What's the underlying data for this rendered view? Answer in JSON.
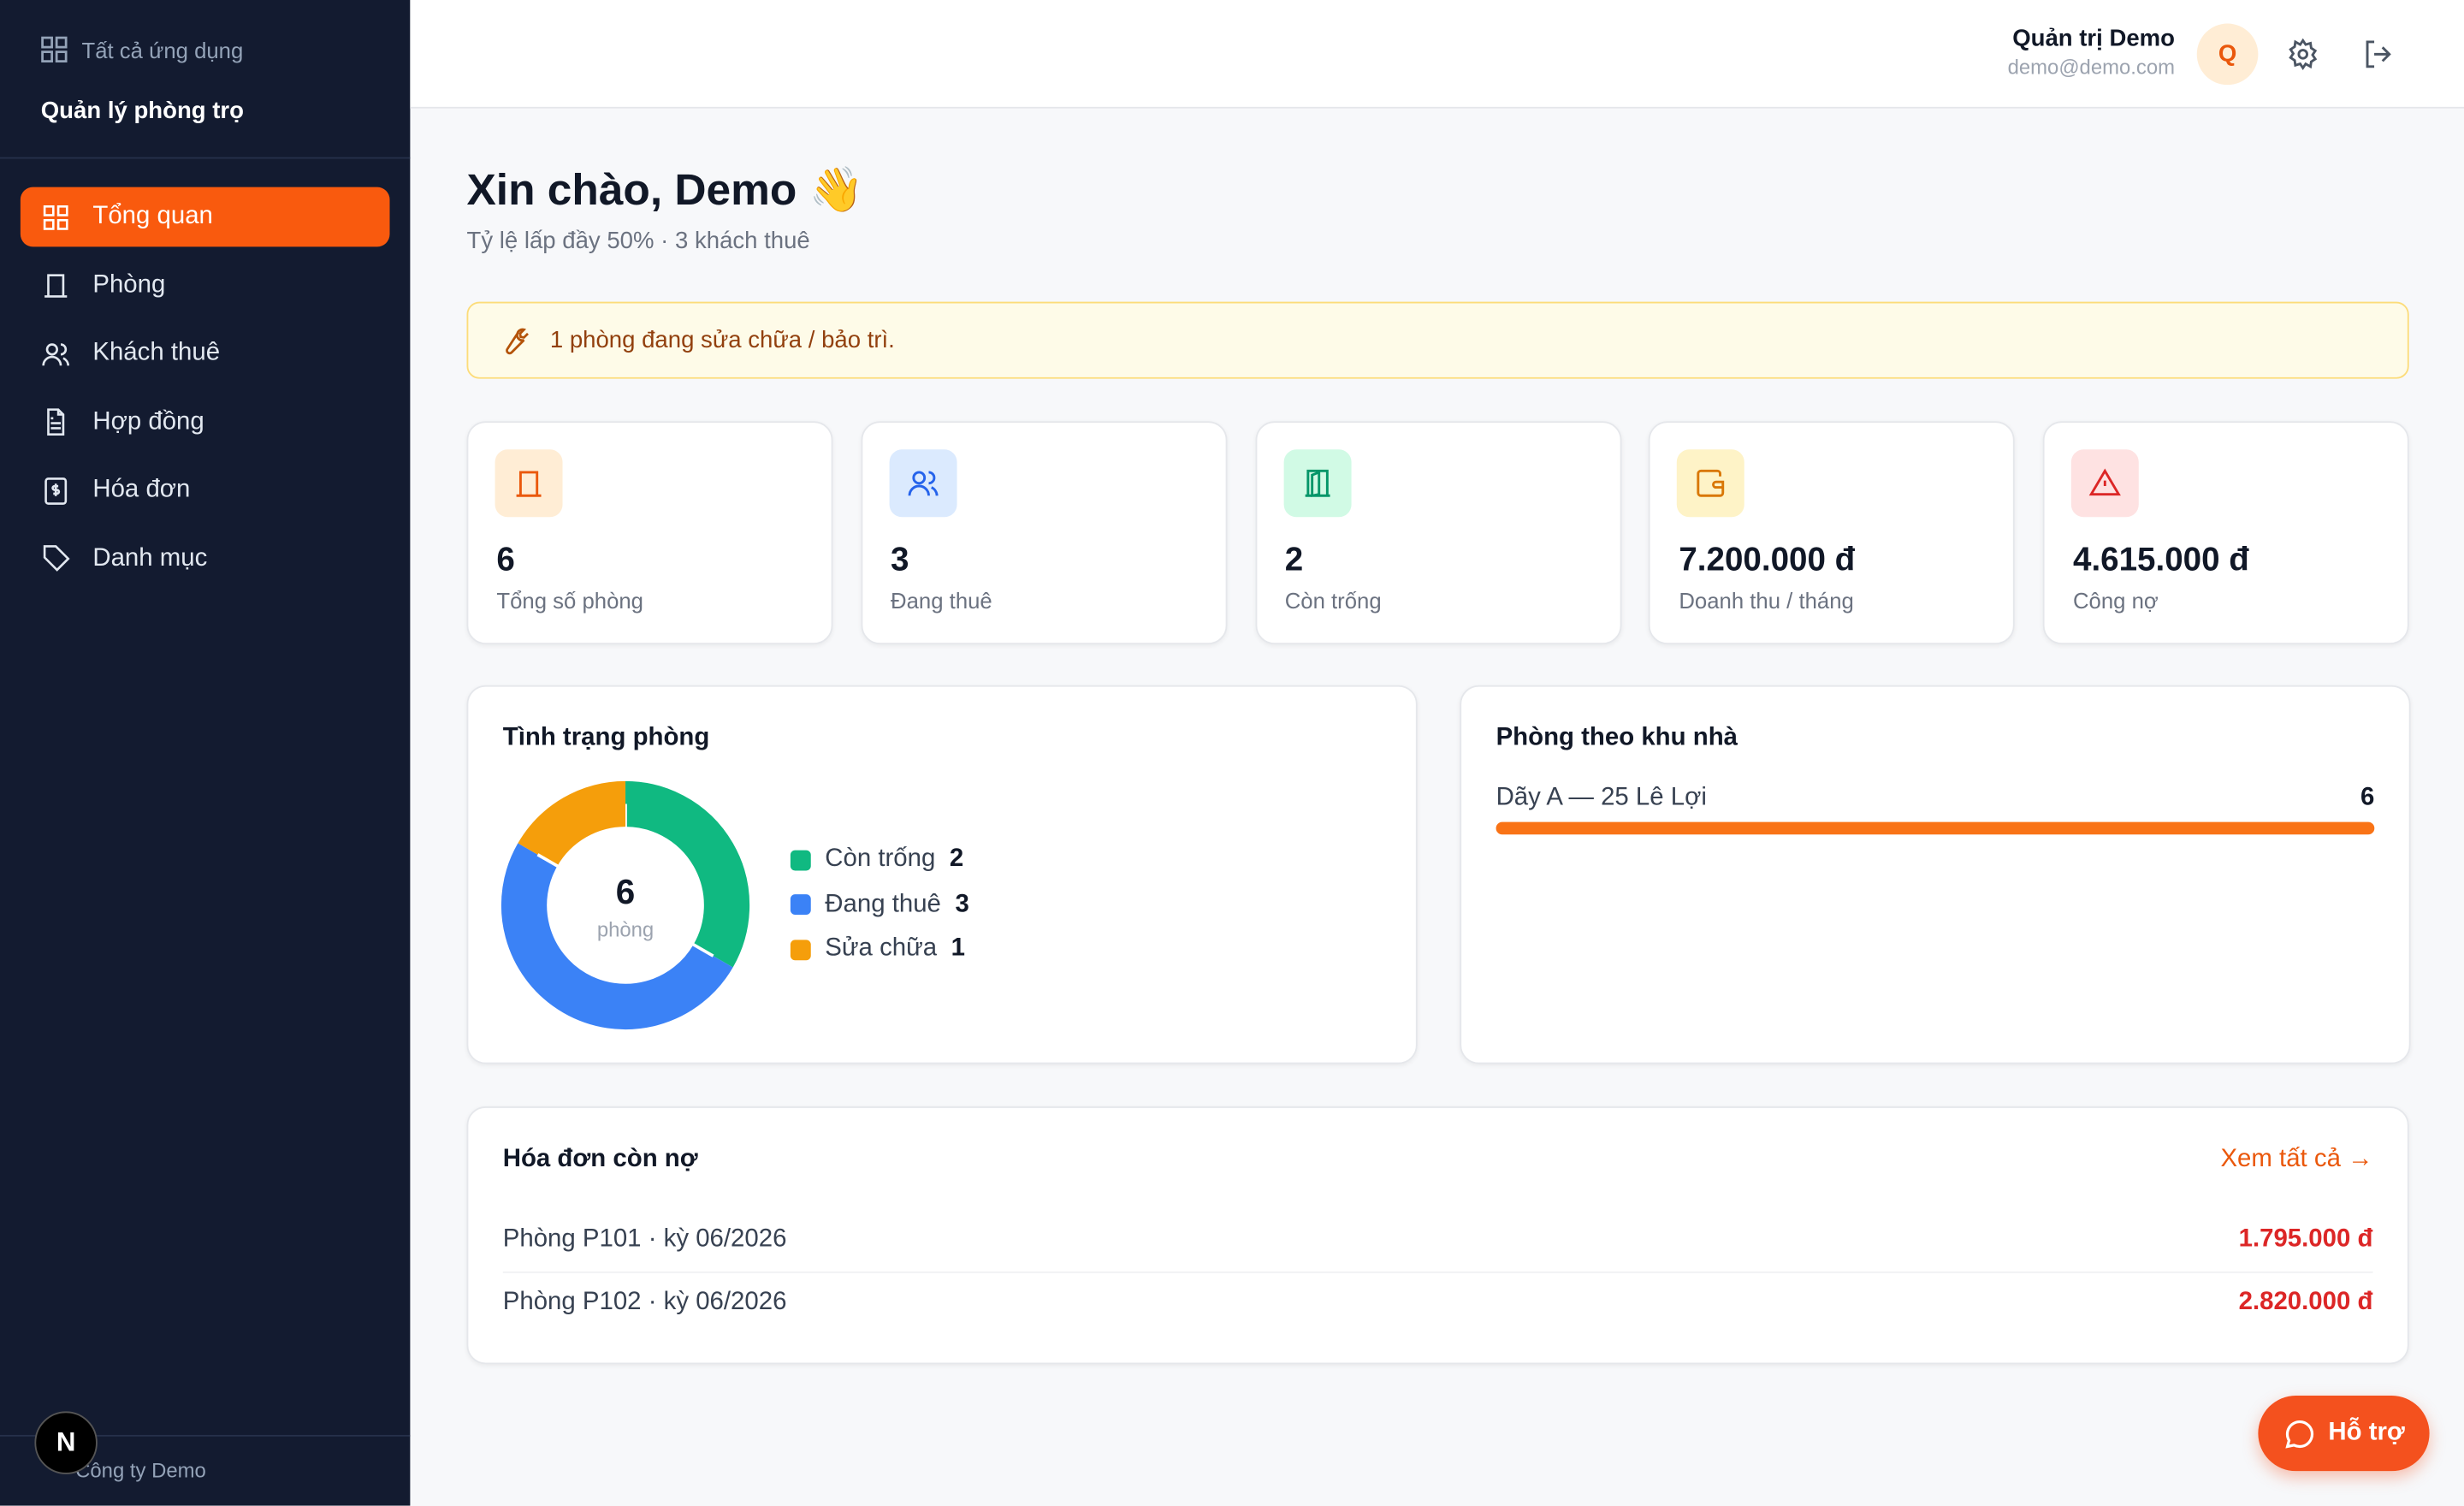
{
  "sidebar": {
    "all_apps": "Tất cả ứng dụng",
    "app_name": "Quản lý phòng trọ",
    "nav": [
      "Tổng quan",
      "Phòng",
      "Khách thuê",
      "Hợp đồng",
      "Hóa đơn",
      "Danh mục"
    ],
    "company": "Công ty Demo",
    "avatar": "N"
  },
  "header": {
    "user_name": "Quản trị Demo",
    "user_email": "demo@demo.com",
    "avatar": "Q"
  },
  "greeting": {
    "title": "Xin chào, Demo 👋",
    "subtitle": "Tỷ lệ lấp đầy 50% · 3 khách thuê"
  },
  "alert": "1 phòng đang sửa chữa / bảo trì.",
  "stats": [
    {
      "value": "6",
      "label": "Tổng số phòng"
    },
    {
      "value": "3",
      "label": "Đang thuê"
    },
    {
      "value": "2",
      "label": "Còn trống"
    },
    {
      "value": "7.200.000 đ",
      "label": "Doanh thu / tháng"
    },
    {
      "value": "4.615.000 đ",
      "label": "Công nợ"
    }
  ],
  "room_status": {
    "type": "pie",
    "title": "Tình trạng phòng",
    "center_value": 6,
    "center_label": "phòng",
    "categories": [
      "Còn trống",
      "Đang thuê",
      "Sửa chữa"
    ],
    "values": [
      2,
      3,
      1
    ],
    "colors": [
      "#10b981",
      "#3b82f6",
      "#f59e0b"
    ]
  },
  "buildings": {
    "type": "bar",
    "title": "Phòng theo khu nhà",
    "categories": [
      "Dãy A — 25 Lê Lợi"
    ],
    "values": [
      6
    ],
    "color": "#f97316"
  },
  "invoices": {
    "title": "Hóa đơn còn nợ",
    "view_all": "Xem tất cả →",
    "rows": [
      [
        "Phòng P101 · kỳ 06/2026",
        "1.795.000 đ"
      ],
      [
        "Phòng P102 · kỳ 06/2026",
        "2.820.000 đ"
      ]
    ]
  },
  "support": "Hỗ trợ"
}
